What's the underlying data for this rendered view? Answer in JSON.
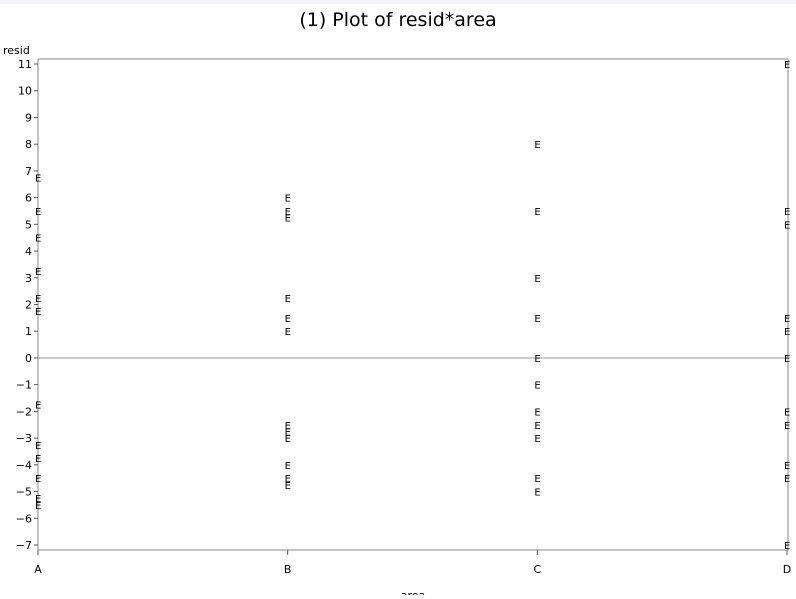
{
  "chart_data": {
    "type": "scatter",
    "title": "(1) Plot of resid*area",
    "xlabel": "area",
    "ylabel": "resid",
    "categories": [
      "A",
      "B",
      "C",
      "D"
    ],
    "ylim": [
      -7,
      11
    ],
    "yticks": [
      -7,
      -6,
      -5,
      -4,
      -3,
      -2,
      -1,
      0,
      1,
      2,
      3,
      4,
      5,
      6,
      7,
      8,
      9,
      10,
      11
    ],
    "reference_line": 0,
    "marker": "E",
    "grid": false,
    "series": [
      {
        "points": [
          {
            "x": "A",
            "y": 6.75
          },
          {
            "x": "A",
            "y": 5.5
          },
          {
            "x": "A",
            "y": 4.5
          },
          {
            "x": "A",
            "y": 3.25
          },
          {
            "x": "A",
            "y": 2.25
          },
          {
            "x": "A",
            "y": 1.75
          },
          {
            "x": "A",
            "y": -1.75
          },
          {
            "x": "A",
            "y": -3.25
          },
          {
            "x": "A",
            "y": -3.75
          },
          {
            "x": "A",
            "y": -4.5
          },
          {
            "x": "A",
            "y": -5.25
          },
          {
            "x": "A",
            "y": -5.5
          },
          {
            "x": "B",
            "y": 6.0
          },
          {
            "x": "B",
            "y": 5.5
          },
          {
            "x": "B",
            "y": 5.25
          },
          {
            "x": "B",
            "y": 2.25
          },
          {
            "x": "B",
            "y": 1.5
          },
          {
            "x": "B",
            "y": 1.0
          },
          {
            "x": "B",
            "y": -2.5
          },
          {
            "x": "B",
            "y": -2.75
          },
          {
            "x": "B",
            "y": -3.0
          },
          {
            "x": "B",
            "y": -4.0
          },
          {
            "x": "B",
            "y": -4.5
          },
          {
            "x": "B",
            "y": -4.75
          },
          {
            "x": "C",
            "y": 8.0
          },
          {
            "x": "C",
            "y": 5.5
          },
          {
            "x": "C",
            "y": 3.0
          },
          {
            "x": "C",
            "y": 1.5
          },
          {
            "x": "C",
            "y": 0.0
          },
          {
            "x": "C",
            "y": -1.0
          },
          {
            "x": "C",
            "y": -2.0
          },
          {
            "x": "C",
            "y": -2.5
          },
          {
            "x": "C",
            "y": -3.0
          },
          {
            "x": "C",
            "y": -4.5
          },
          {
            "x": "C",
            "y": -5.0
          },
          {
            "x": "D",
            "y": 11.0
          },
          {
            "x": "D",
            "y": 5.5
          },
          {
            "x": "D",
            "y": 5.0
          },
          {
            "x": "D",
            "y": 1.5
          },
          {
            "x": "D",
            "y": 1.0
          },
          {
            "x": "D",
            "y": 0.0
          },
          {
            "x": "D",
            "y": -2.0
          },
          {
            "x": "D",
            "y": -2.5
          },
          {
            "x": "D",
            "y": -4.0
          },
          {
            "x": "D",
            "y": -4.5
          },
          {
            "x": "D",
            "y": -7.0
          }
        ]
      }
    ]
  }
}
